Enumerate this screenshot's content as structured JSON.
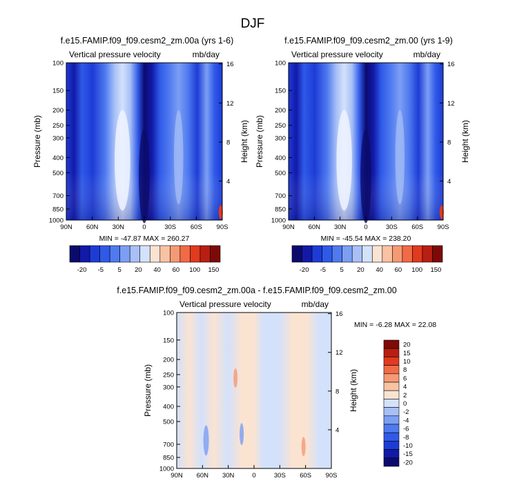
{
  "page": {
    "title": "DJF"
  },
  "colors": {
    "abs": [
      "#0b0b6e",
      "#1219a8",
      "#1d3cd6",
      "#2f5ae8",
      "#4f7af0",
      "#7c9ef4",
      "#a8c0f7",
      "#d3e1fb",
      "#fbe3d2",
      "#f8c2a3",
      "#f59a74",
      "#f06b46",
      "#e23a1f",
      "#b81f12",
      "#7e0a08"
    ],
    "diff": [
      "#0b0b6e",
      "#1219a8",
      "#1d3cd6",
      "#2f5ae8",
      "#4f7af0",
      "#7c9ef4",
      "#a8c0f7",
      "#d3e1fb",
      "#fbe3d2",
      "#f8c2a3",
      "#f59a74",
      "#f06b46",
      "#e23a1f",
      "#b81f12",
      "#7e0a08"
    ]
  },
  "chart_data": [
    {
      "id": "p1",
      "type": "contour",
      "title": "f.e15.FAMIP.f09_f09.cesm2_zm.00a (yrs 1-6)",
      "left_label": "Vertical pressure velocity",
      "right_label": "mb/day",
      "ylabel": "Pressure (mb)",
      "y2label": "Height (km)",
      "x_ticks": [
        "90N",
        "60N",
        "30N",
        "0",
        "30S",
        "60S",
        "90S"
      ],
      "y_ticks": [
        "100",
        "150",
        "200",
        "250",
        "300",
        "400",
        "500",
        "700",
        "850",
        "1000"
      ],
      "y2_ticks": [
        "16",
        "12",
        "8",
        "4"
      ],
      "stats": "MIN = -47.87  MAX = 260.27",
      "levels": [
        "-20",
        "-5",
        "5",
        "20",
        "40",
        "60",
        "100",
        "150"
      ]
    },
    {
      "id": "p2",
      "type": "contour",
      "title": "f.e15.FAMIP.f09_f09.cesm2_zm.00 (yrs 1-9)",
      "left_label": "Vertical pressure velocity",
      "right_label": "mb/day",
      "ylabel": "Pressure (mb)",
      "y2label": "Height (km)",
      "x_ticks": [
        "90N",
        "60N",
        "30N",
        "0",
        "30S",
        "60S",
        "90S"
      ],
      "y_ticks": [
        "100",
        "150",
        "200",
        "250",
        "300",
        "400",
        "500",
        "700",
        "850",
        "1000"
      ],
      "y2_ticks": [
        "16",
        "12",
        "8",
        "4"
      ],
      "stats": "MIN = -45.54  MAX = 238.20",
      "levels": [
        "-20",
        "-5",
        "5",
        "20",
        "40",
        "60",
        "100",
        "150"
      ]
    },
    {
      "id": "p3",
      "type": "contour",
      "title": "f.e15.FAMIP.f09_f09.cesm2_zm.00a - f.e15.FAMIP.f09_f09.cesm2_zm.00",
      "left_label": "Vertical pressure velocity",
      "right_label": "mb/day",
      "ylabel": "Pressure (mb)",
      "y2label": "Height (km)",
      "x_ticks": [
        "90N",
        "60N",
        "30N",
        "0",
        "30S",
        "60S",
        "90S"
      ],
      "y_ticks": [
        "100",
        "150",
        "200",
        "250",
        "300",
        "400",
        "500",
        "700",
        "850",
        "1000"
      ],
      "y2_ticks": [
        "16",
        "12",
        "8",
        "4"
      ],
      "stats": "MIN = -6.28  MAX = 22.08",
      "levels": [
        "20",
        "15",
        "10",
        "8",
        "6",
        "4",
        "2",
        "0",
        "-2",
        "-4",
        "-6",
        "-8",
        "-10",
        "-15",
        "-20"
      ]
    }
  ]
}
